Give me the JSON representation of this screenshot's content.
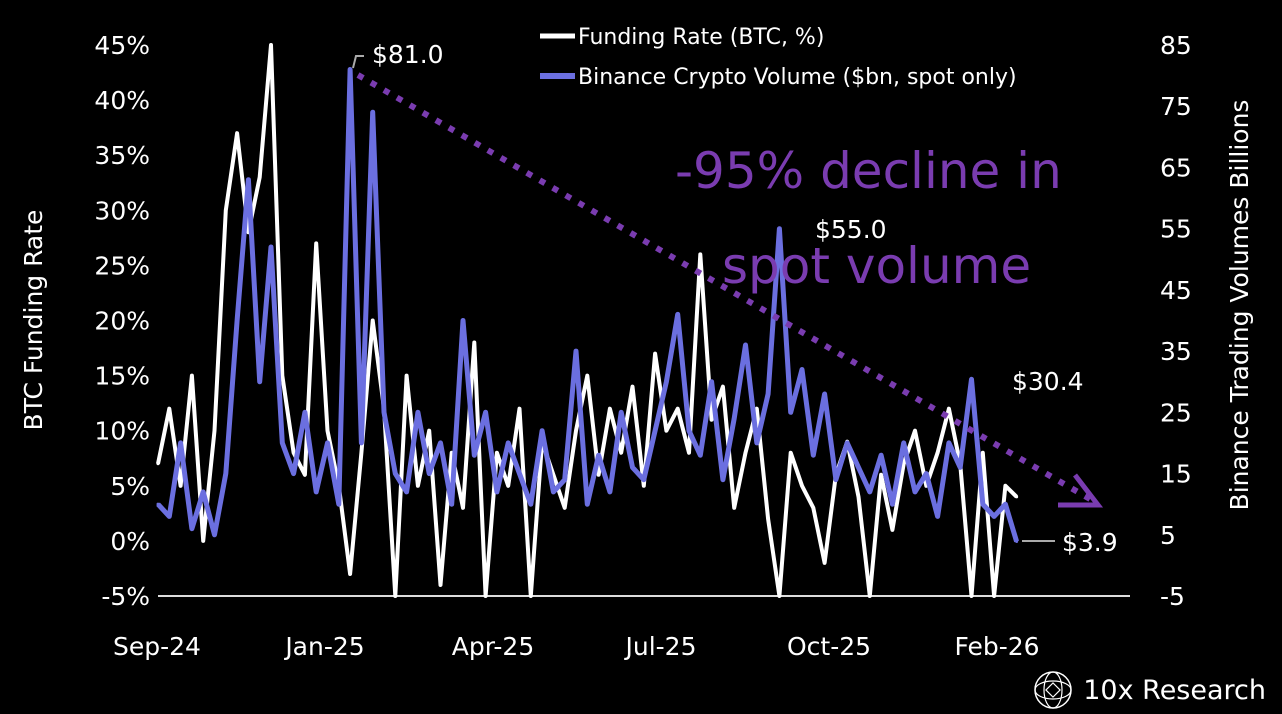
{
  "chart_data": {
    "type": "line",
    "title": "",
    "left_axis": {
      "label": "BTC Funding Rate",
      "range": [
        -5,
        45
      ],
      "ticks": [
        "-5%",
        "0%",
        "5%",
        "10%",
        "15%",
        "20%",
        "25%",
        "30%",
        "35%",
        "40%",
        "45%"
      ],
      "values": [
        -5,
        0,
        5,
        10,
        15,
        20,
        25,
        30,
        35,
        40,
        45
      ]
    },
    "right_axis": {
      "label": "Binance Trading  Volumes Billions",
      "range": [
        -5,
        85
      ],
      "ticks": [
        "-5",
        "5",
        "15",
        "25",
        "35",
        "45",
        "55",
        "65",
        "75",
        "85"
      ],
      "values": [
        -5,
        5,
        15,
        25,
        35,
        45,
        55,
        65,
        75,
        85
      ]
    },
    "x_ticks": [
      "Sep-24",
      "Jan-25",
      "Apr-25",
      "Jul-25",
      "Oct-25",
      "Feb-26"
    ],
    "grid": false,
    "legend_placement": "top-center",
    "x": [
      "2024-09-21",
      "2024-09-28",
      "2024-10-05",
      "2024-10-12",
      "2024-10-19",
      "2024-10-26",
      "2024-11-02",
      "2024-11-09",
      "2024-11-16",
      "2024-11-23",
      "2024-11-30",
      "2024-12-07",
      "2024-12-14",
      "2024-12-21",
      "2024-12-28",
      "2025-01-04",
      "2025-01-11",
      "2025-01-18",
      "2025-01-25",
      "2025-02-01",
      "2025-02-08",
      "2025-02-15",
      "2025-02-22",
      "2025-03-01",
      "2025-03-08",
      "2025-03-15",
      "2025-03-22",
      "2025-03-29",
      "2025-04-05",
      "2025-04-12",
      "2025-04-19",
      "2025-04-26",
      "2025-05-03",
      "2025-05-10",
      "2025-05-17",
      "2025-05-24",
      "2025-05-31",
      "2025-06-07",
      "2025-06-14",
      "2025-06-21",
      "2025-06-28",
      "2025-07-05",
      "2025-07-12",
      "2025-07-19",
      "2025-07-26",
      "2025-08-02",
      "2025-08-09",
      "2025-08-16",
      "2025-08-23",
      "2025-08-30",
      "2025-09-06",
      "2025-09-13",
      "2025-09-20",
      "2025-09-27",
      "2025-10-04",
      "2025-10-11",
      "2025-10-18",
      "2025-10-25",
      "2025-11-01",
      "2025-11-08",
      "2025-11-15",
      "2025-11-22",
      "2025-11-29",
      "2025-12-06",
      "2025-12-13",
      "2025-12-20",
      "2025-12-27",
      "2026-01-03",
      "2026-01-10",
      "2026-01-17",
      "2026-01-24",
      "2026-01-31",
      "2026-02-07",
      "2026-02-14",
      "2026-02-21",
      "2026-02-28",
      "2026-03-07"
    ],
    "series": [
      {
        "name": "Funding Rate (BTC, %)",
        "axis": "left",
        "color": "#ffffff",
        "values": [
          7,
          12,
          5,
          15,
          0,
          10,
          30,
          37,
          28,
          33,
          45,
          15,
          8,
          6,
          27,
          10,
          5,
          -3,
          8,
          20,
          12,
          -5,
          15,
          5,
          10,
          -4,
          8,
          3,
          18,
          -5,
          8,
          5,
          12,
          -5,
          9,
          6,
          3,
          10,
          15,
          6,
          12,
          8,
          14,
          5,
          17,
          10,
          12,
          8,
          26,
          11,
          14,
          3,
          8,
          12,
          2,
          -5,
          8,
          5,
          3,
          -2,
          6,
          9,
          4,
          -5,
          6,
          1,
          7,
          10,
          5,
          8,
          12,
          7,
          -5,
          8,
          -5,
          5,
          4
        ]
      },
      {
        "name": "Binance Crypto Volume ($bn, spot only)",
        "axis": "right",
        "color": "#6b6fe0",
        "values": [
          10,
          8,
          20,
          6,
          12,
          5,
          15,
          40,
          63,
          30,
          52,
          20,
          15,
          25,
          12,
          20,
          10,
          81,
          20,
          74,
          25,
          15,
          12,
          25,
          15,
          20,
          10,
          40,
          18,
          25,
          12,
          20,
          15,
          10,
          22,
          12,
          14,
          35,
          10,
          18,
          12,
          25,
          16,
          14,
          22,
          30,
          41,
          22,
          18,
          30,
          14,
          24,
          36,
          20,
          28,
          55,
          25,
          32,
          18,
          28,
          14,
          20,
          16,
          12,
          18,
          10,
          20,
          12,
          15,
          8,
          20,
          16,
          30.4,
          10,
          8,
          10,
          3.9
        ]
      }
    ],
    "annotations": {
      "peak_label": "$81.0",
      "oct_label": "$55.0",
      "feb_label": "$30.4",
      "last_label": "$3.9",
      "headline_line1": "-95% decline in",
      "headline_line2": "spot volume",
      "trend_color": "#7a3cb0"
    }
  },
  "branding": {
    "logo_text": "10x Research"
  }
}
